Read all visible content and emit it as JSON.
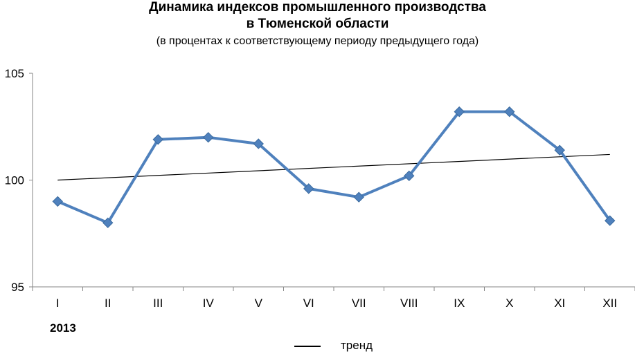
{
  "chart_data": {
    "type": "line",
    "title_line1": "Динамика индексов промышленного производства",
    "title_line2": "в Тюменской области",
    "subtitle": "(в процентах к соответствующему периоду предыдущего года)",
    "categories": [
      "I",
      "II",
      "III",
      "IV",
      "V",
      "VI",
      "VII",
      "VIII",
      "IX",
      "X",
      "XI",
      "XII"
    ],
    "year_label": "2013",
    "series": [
      {
        "values": [
          99.0,
          98.0,
          101.9,
          102.0,
          101.7,
          99.6,
          99.2,
          100.2,
          103.2,
          103.2,
          101.4,
          98.1
        ],
        "color": "#4F81BD",
        "marker": "diamond"
      }
    ],
    "trend": {
      "name": "тренд",
      "start": 100.0,
      "end": 101.2,
      "color": "#000000"
    },
    "ylim": [
      95,
      105
    ],
    "yticks": [
      "95",
      "100",
      "105"
    ],
    "grid": false,
    "legend_position": "bottom"
  }
}
